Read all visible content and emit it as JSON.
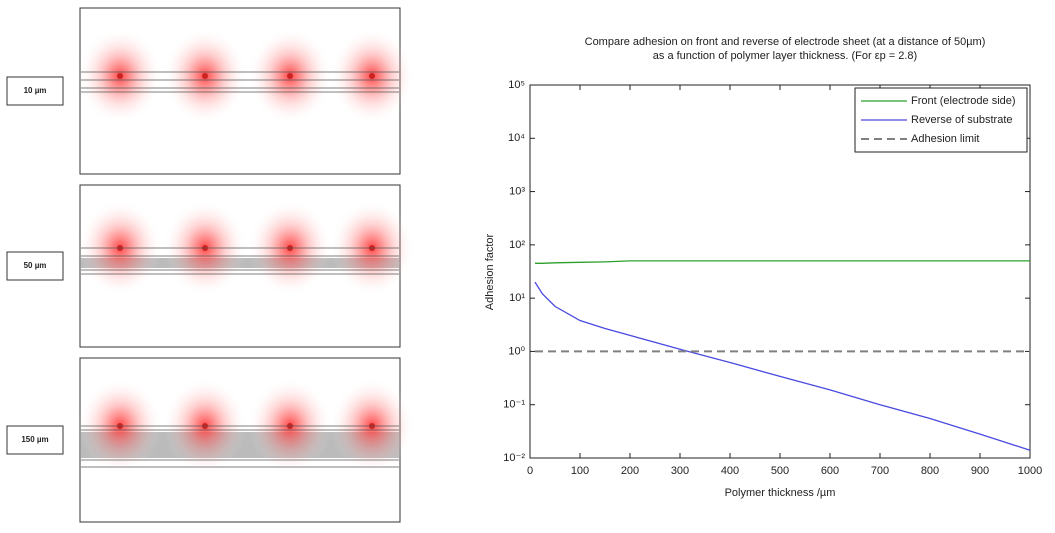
{
  "panels": [
    {
      "label": "10 µm"
    },
    {
      "label": "50 µm"
    },
    {
      "label": "150 µm"
    }
  ],
  "chart_data": {
    "type": "line",
    "title": [
      "Compare adhesion on front and reverse of electrode sheet (at a distance of 50µm)",
      "as a function of polymer layer thickness. (For εp = 2.8)"
    ],
    "xlabel": "Polymer thickness /µm",
    "ylabel": "Adhesion factor",
    "x": [
      10,
      25,
      50,
      100,
      150,
      200,
      300,
      400,
      500,
      600,
      700,
      800,
      900,
      1000
    ],
    "series": [
      {
        "name": "Front (electrode side)",
        "color": "#2ca02c",
        "dash": false,
        "values": [
          45,
          45,
          46,
          47,
          48,
          50,
          50,
          50,
          50,
          50,
          50,
          50,
          50,
          50
        ]
      },
      {
        "name": "Reverse of substrate",
        "color": "#4a4ae0",
        "dash": false,
        "values": [
          20,
          12,
          7,
          3.8,
          2.7,
          2.0,
          1.1,
          0.62,
          0.34,
          0.19,
          0.1,
          0.055,
          0.028,
          0.014
        ]
      },
      {
        "name": "Adhesion limit",
        "color": "#808080",
        "dash": true,
        "values": [
          1,
          1,
          1,
          1,
          1,
          1,
          1,
          1,
          1,
          1,
          1,
          1,
          1,
          1
        ]
      }
    ],
    "xlim": [
      0,
      1000
    ],
    "xticks": [
      0,
      100,
      200,
      300,
      400,
      500,
      600,
      700,
      800,
      900,
      1000
    ],
    "ylim": [
      0.01,
      100000
    ],
    "log_y": true,
    "yticks": [
      {
        "value": 0.01,
        "label": "10⁻²"
      },
      {
        "value": 0.1,
        "label": "10⁻¹"
      },
      {
        "value": 1,
        "label": "10⁰"
      },
      {
        "value": 10,
        "label": "10¹"
      },
      {
        "value": 100,
        "label": "10²"
      },
      {
        "value": 1000,
        "label": "10³"
      },
      {
        "value": 10000,
        "label": "10⁴"
      },
      {
        "value": 100000,
        "label": "10⁵"
      }
    ],
    "legend": "upper right"
  }
}
